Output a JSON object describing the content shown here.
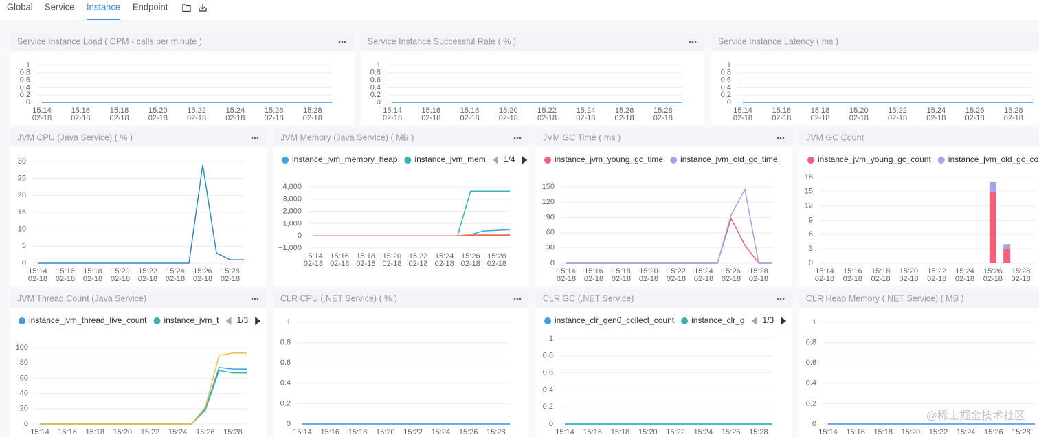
{
  "tabs": [
    {
      "label": "Global"
    },
    {
      "label": "Service"
    },
    {
      "label": "Instance",
      "active": true
    },
    {
      "label": "Endpoint"
    }
  ],
  "watermark": "@稀土掘金技术社区",
  "chart_data": [
    {
      "type": "line",
      "title": "Service Instance Load ( CPM - calls per minute )",
      "categories": [
        "15:14",
        null,
        "15:16",
        null,
        "15:18",
        null,
        "15:20",
        null,
        "15:22",
        null,
        "15:24",
        null,
        "15:26",
        null,
        "15:28",
        null
      ],
      "category_dates": [
        "02-18",
        null,
        "02-18",
        null,
        "02-18",
        null,
        "02-18",
        null,
        "02-18",
        null,
        "02-18",
        null,
        "02-18",
        null,
        "02-18",
        null
      ],
      "series": [
        {
          "color": "#3a8ee6",
          "values": [
            0,
            0,
            0,
            0,
            0,
            0,
            0,
            0,
            0,
            0,
            0,
            0,
            0,
            0,
            0,
            0
          ]
        }
      ],
      "ylim": [
        0,
        1
      ],
      "yticks": [
        0,
        0.2,
        0.4,
        0.6,
        0.8,
        1
      ],
      "grid": true
    },
    {
      "type": "line",
      "title": "Service Instance Successful Rate ( % )",
      "categories": [
        "15:14",
        null,
        "15:16",
        null,
        "15:18",
        null,
        "15:20",
        null,
        "15:22",
        null,
        "15:24",
        null,
        "15:26",
        null,
        "15:28",
        null
      ],
      "category_dates": [
        "02-18",
        null,
        "02-18",
        null,
        "02-18",
        null,
        "02-18",
        null,
        "02-18",
        null,
        "02-18",
        null,
        "02-18",
        null,
        "02-18",
        null
      ],
      "series": [
        {
          "color": "#3a8ee6",
          "values": [
            0,
            0,
            0,
            0,
            0,
            0,
            0,
            0,
            0,
            0,
            0,
            0,
            0,
            0,
            0,
            0
          ]
        }
      ],
      "ylim": [
        0,
        1
      ],
      "yticks": [
        0,
        0.2,
        0.4,
        0.6,
        0.8,
        1
      ],
      "grid": true
    },
    {
      "type": "line",
      "title": "Service Instance Latency ( ms )",
      "categories": [
        "15:14",
        null,
        "15:16",
        null,
        "15:18",
        null,
        "15:20",
        null,
        "15:22",
        null,
        "15:24",
        null,
        "15:26",
        null,
        "15:28",
        null
      ],
      "category_dates": [
        "02-18",
        null,
        "02-18",
        null,
        "02-18",
        null,
        "02-18",
        null,
        "02-18",
        null,
        "02-18",
        null,
        "02-18",
        null,
        "02-18",
        null
      ],
      "series": [
        {
          "color": "#3a8ee6",
          "values": [
            0,
            0,
            0,
            0,
            0,
            0,
            0,
            0,
            0,
            0,
            0,
            0,
            0,
            0,
            0,
            0
          ]
        }
      ],
      "ylim": [
        0,
        1
      ],
      "yticks": [
        0,
        0.2,
        0.4,
        0.6,
        0.8,
        1
      ],
      "grid": true
    },
    {
      "type": "line",
      "title": "JVM CPU (Java Service) ( % )",
      "categories": [
        "15:14",
        null,
        "15:16",
        null,
        "15:18",
        null,
        "15:20",
        null,
        "15:22",
        null,
        "15:24",
        null,
        "15:26",
        null,
        "15:28",
        null
      ],
      "category_dates": [
        "02-18",
        null,
        "02-18",
        null,
        "02-18",
        null,
        "02-18",
        null,
        "02-18",
        null,
        "02-18",
        null,
        "02-18",
        null,
        "02-18",
        null
      ],
      "series": [
        {
          "color": "#2f8ac4",
          "values": [
            0,
            0,
            0,
            0,
            0,
            0,
            0,
            0,
            0,
            0,
            0,
            0,
            29,
            3,
            1,
            1
          ]
        }
      ],
      "ylim": [
        0,
        30
      ],
      "yticks": [
        0,
        5,
        10,
        15,
        20,
        25,
        30
      ],
      "grid": true
    },
    {
      "type": "line",
      "title": "JVM Memory (Java Service) ( MB )",
      "categories": [
        "15:14",
        null,
        "15:16",
        null,
        "15:18",
        null,
        "15:20",
        null,
        "15:22",
        null,
        "15:24",
        null,
        "15:26",
        null,
        "15:28",
        null
      ],
      "category_dates": [
        "02-18",
        null,
        "02-18",
        null,
        "02-18",
        null,
        "02-18",
        null,
        "02-18",
        null,
        "02-18",
        null,
        "02-18",
        null,
        "02-18",
        null
      ],
      "series": [
        {
          "name": "instance_jvm_memory_heap",
          "color": "#3ba0e6",
          "values": [
            0,
            0,
            0,
            0,
            0,
            0,
            0,
            0,
            0,
            0,
            0,
            0,
            100,
            400,
            450,
            500
          ]
        },
        {
          "name": "instance_jvm_mem",
          "color": "#36b5b0",
          "values": [
            0,
            0,
            0,
            0,
            0,
            0,
            0,
            0,
            0,
            0,
            0,
            0,
            3650,
            3650,
            3650,
            3650
          ]
        },
        {
          "color": "#f5a142",
          "values": [
            0,
            0,
            0,
            0,
            0,
            0,
            0,
            0,
            0,
            0,
            0,
            0,
            100,
            100,
            100,
            100
          ]
        },
        {
          "color": "#f0607a",
          "values": [
            0,
            0,
            0,
            0,
            0,
            0,
            0,
            0,
            0,
            0,
            0,
            0,
            30,
            30,
            30,
            30
          ]
        }
      ],
      "legend_pager": "1/4",
      "ylim": [
        -1000,
        4000
      ],
      "yticks": [
        {
          "value": -1000,
          "label": "−1,000"
        },
        0,
        {
          "value": 1000,
          "label": "1,000"
        },
        {
          "value": 2000,
          "label": "2,000"
        },
        {
          "value": 3000,
          "label": "3,000"
        },
        {
          "value": 4000,
          "label": "4,000"
        }
      ],
      "grid": true
    },
    {
      "type": "line",
      "title": "JVM GC Time ( ms )",
      "categories": [
        "15:14",
        null,
        "15:16",
        null,
        "15:18",
        null,
        "15:20",
        null,
        "15:22",
        null,
        "15:24",
        null,
        "15:26",
        null,
        "15:28",
        null
      ],
      "category_dates": [
        "02-18",
        null,
        "02-18",
        null,
        "02-18",
        null,
        "02-18",
        null,
        "02-18",
        null,
        "02-18",
        null,
        "02-18",
        null,
        "02-18",
        null
      ],
      "series": [
        {
          "name": "instance_jvm_young_gc_time",
          "color": "#f0607a",
          "values": [
            0,
            0,
            0,
            0,
            0,
            0,
            0,
            0,
            0,
            0,
            0,
            0,
            88,
            35,
            0,
            0
          ]
        },
        {
          "name": "instance_jvm_old_gc_time",
          "color": "#9fa7e6",
          "values": [
            0,
            0,
            0,
            0,
            0,
            0,
            0,
            0,
            0,
            0,
            0,
            0,
            95,
            145,
            0,
            0
          ]
        }
      ],
      "ylim": [
        0,
        150
      ],
      "yticks": [
        0,
        30,
        60,
        90,
        120,
        150
      ],
      "grid": true
    },
    {
      "type": "bar",
      "stacked": true,
      "title": "JVM GC Count",
      "categories": [
        "15:14",
        null,
        "15:16",
        null,
        "15:18",
        null,
        "15:20",
        null,
        "15:22",
        null,
        "15:24",
        null,
        "15:26",
        null,
        "15:28",
        null
      ],
      "category_dates": [
        "02-18",
        null,
        "02-18",
        null,
        "02-18",
        null,
        "02-18",
        null,
        "02-18",
        null,
        "02-18",
        null,
        "02-18",
        null,
        "02-18",
        null
      ],
      "series": [
        {
          "name": "instance_jvm_young_gc_count",
          "color": "#f0607a",
          "values": [
            0,
            0,
            0,
            0,
            0,
            0,
            0,
            0,
            0,
            0,
            0,
            0,
            15,
            3,
            0,
            0
          ]
        },
        {
          "name": "instance_jvm_old_gc_coun",
          "color": "#9fa7e6",
          "values": [
            0,
            0,
            0,
            0,
            0,
            0,
            0,
            0,
            0,
            0,
            0,
            0,
            2,
            1,
            0,
            0
          ]
        }
      ],
      "ylim": [
        0,
        18
      ],
      "yticks": [
        0,
        3,
        6,
        9,
        12,
        15,
        18
      ],
      "grid": true
    },
    {
      "type": "line",
      "title": "JVM Thread Count (Java Service)",
      "categories": [
        "15:14",
        null,
        "15:16",
        null,
        "15:18",
        null,
        "15:20",
        null,
        "15:22",
        null,
        "15:24",
        null,
        "15:26",
        null,
        "15:28",
        null
      ],
      "series": [
        {
          "name": "instance_jvm_thread_live_count",
          "color": "#3ba0e6",
          "values": [
            0,
            0,
            0,
            0,
            0,
            0,
            0,
            0,
            0,
            0,
            0,
            0,
            20,
            74,
            72,
            72
          ]
        },
        {
          "name": "instance_jvm_t",
          "color": "#36b5b0",
          "values": [
            0,
            0,
            0,
            0,
            0,
            0,
            0,
            0,
            0,
            0,
            0,
            0,
            18,
            70,
            67,
            67
          ]
        },
        {
          "color": "#f5c142",
          "values": [
            0,
            0,
            0,
            0,
            0,
            0,
            0,
            0,
            0,
            0,
            0,
            0,
            22,
            90,
            93,
            93
          ]
        }
      ],
      "legend_pager": "1/3",
      "ylim": [
        0,
        100
      ],
      "yticks": [
        0,
        20,
        40,
        60,
        80,
        100
      ],
      "grid": true
    },
    {
      "type": "line",
      "title": "CLR CPU (.NET Service) ( % )",
      "categories": [
        "15:14",
        null,
        "15:16",
        null,
        "15:18",
        null,
        "15:20",
        null,
        "15:22",
        null,
        "15:24",
        null,
        "15:26",
        null,
        "15:28",
        null
      ],
      "series": [
        {
          "color": "#3a8ee6",
          "values": [
            0,
            0,
            0,
            0,
            0,
            0,
            0,
            0,
            0,
            0,
            0,
            0,
            0,
            0,
            0,
            0
          ]
        }
      ],
      "ylim": [
        0,
        1
      ],
      "yticks": [
        0,
        0.2,
        0.4,
        0.6,
        0.8,
        1
      ],
      "grid": true
    },
    {
      "type": "line",
      "title": "CLR GC (.NET Service)",
      "categories": [
        "15:14",
        null,
        "15:16",
        null,
        "15:18",
        null,
        "15:20",
        null,
        "15:22",
        null,
        "15:24",
        null,
        "15:26",
        null,
        "15:28",
        null
      ],
      "series": [
        {
          "name": "instance_clr_gen0_collect_count",
          "color": "#3ba0e6",
          "values": [
            0,
            0,
            0,
            0,
            0,
            0,
            0,
            0,
            0,
            0,
            0,
            0,
            0,
            0,
            0,
            0
          ]
        },
        {
          "name": "instance_clr_g",
          "color": "#36b5b0",
          "values": [
            0,
            0,
            0,
            0,
            0,
            0,
            0,
            0,
            0,
            0,
            0,
            0,
            0,
            0,
            0,
            0
          ]
        }
      ],
      "legend_pager": "1/3",
      "ylim": [
        0,
        1
      ],
      "yticks": [
        0,
        0.2,
        0.4,
        0.6,
        0.8,
        1
      ],
      "grid": true
    },
    {
      "type": "line",
      "title": "CLR Heap Memory (.NET Service) ( MB )",
      "categories": [
        "15:14",
        null,
        "15:16",
        null,
        "15:18",
        null,
        "15:20",
        null,
        "15:22",
        null,
        "15:24",
        null,
        "15:26",
        null,
        "15:28",
        null
      ],
      "series": [
        {
          "color": "#3a8ee6",
          "values": [
            0,
            0,
            0,
            0,
            0,
            0,
            0,
            0,
            0,
            0,
            0,
            0,
            0,
            0,
            0,
            0
          ]
        }
      ],
      "ylim": [
        0,
        1
      ],
      "yticks": [
        0,
        0.2,
        0.4,
        0.6,
        0.8,
        1
      ],
      "grid": true
    }
  ]
}
